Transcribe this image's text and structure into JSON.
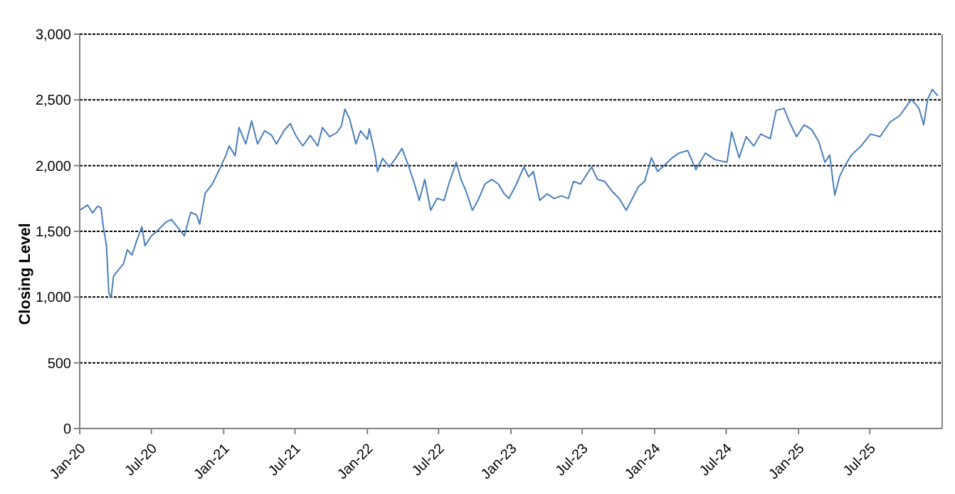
{
  "chart_data": {
    "type": "line",
    "ylabel": "Closing Level",
    "grid": "y",
    "marker": "none",
    "line_style": "solid",
    "xlim": [
      "2020-01-01",
      "2026-01-01"
    ],
    "xticks": [
      {
        "value": "2020-01-01",
        "label": "Jan-20"
      },
      {
        "value": "2020-07-01",
        "label": "Jul-20"
      },
      {
        "value": "2021-01-01",
        "label": "Jan-21"
      },
      {
        "value": "2021-07-01",
        "label": "Jul-21"
      },
      {
        "value": "2022-01-01",
        "label": "Jan-22"
      },
      {
        "value": "2022-07-01",
        "label": "Jul-22"
      },
      {
        "value": "2023-01-01",
        "label": "Jan-23"
      },
      {
        "value": "2023-07-01",
        "label": "Jul-23"
      },
      {
        "value": "2024-01-01",
        "label": "Jan-24"
      },
      {
        "value": "2024-07-01",
        "label": "Jul-24"
      },
      {
        "value": "2025-01-01",
        "label": "Jan-25"
      },
      {
        "value": "2025-07-01",
        "label": "Jul-25"
      }
    ],
    "ylim": [
      0,
      3000
    ],
    "yticks": [
      {
        "value": 0,
        "label": "0"
      },
      {
        "value": 500,
        "label": "500"
      },
      {
        "value": 1000,
        "label": "1,000"
      },
      {
        "value": 1500,
        "label": "1,500"
      },
      {
        "value": 2000,
        "label": "2,000"
      },
      {
        "value": 2500,
        "label": "2,500"
      },
      {
        "value": 3000,
        "label": "3,000"
      }
    ],
    "x": [
      "2020-01-01",
      "2020-01-21",
      "2020-02-03",
      "2020-02-15",
      "2020-02-24",
      "2020-03-01",
      "2020-03-09",
      "2020-03-15",
      "2020-03-21",
      "2020-03-27",
      "2020-04-09",
      "2020-04-21",
      "2020-05-01",
      "2020-05-13",
      "2020-05-25",
      "2020-06-07",
      "2020-06-15",
      "2020-07-01",
      "2020-07-15",
      "2020-08-07",
      "2020-08-21",
      "2020-09-09",
      "2020-09-23",
      "2020-10-09",
      "2020-10-24",
      "2020-11-01",
      "2020-11-15",
      "2020-12-03",
      "2020-12-21",
      "2021-01-06",
      "2021-01-15",
      "2021-01-30",
      "2021-02-09",
      "2021-02-26",
      "2021-03-13",
      "2021-03-28",
      "2021-04-15",
      "2021-05-03",
      "2021-05-15",
      "2021-06-03",
      "2021-06-19",
      "2021-07-03",
      "2021-07-21",
      "2021-08-09",
      "2021-08-28",
      "2021-09-09",
      "2021-09-27",
      "2021-10-15",
      "2021-10-27",
      "2021-11-05",
      "2021-11-17",
      "2021-12-03",
      "2021-12-15",
      "2022-01-01",
      "2022-01-06",
      "2022-01-21",
      "2022-01-27",
      "2022-02-09",
      "2022-02-26",
      "2022-03-15",
      "2022-03-30",
      "2022-04-15",
      "2022-05-01",
      "2022-05-13",
      "2022-05-27",
      "2022-06-11",
      "2022-06-27",
      "2022-07-15",
      "2022-07-27",
      "2022-08-15",
      "2022-08-27",
      "2022-09-09",
      "2022-09-25",
      "2022-10-09",
      "2022-10-27",
      "2022-11-13",
      "2022-11-30",
      "2022-12-15",
      "2022-12-27",
      "2023-01-15",
      "2023-02-03",
      "2023-02-15",
      "2023-02-27",
      "2023-03-15",
      "2023-04-03",
      "2023-04-21",
      "2023-05-09",
      "2023-05-27",
      "2023-06-09",
      "2023-06-27",
      "2023-07-25",
      "2023-08-09",
      "2023-08-27",
      "2023-09-15",
      "2023-10-03",
      "2023-10-21",
      "2023-11-03",
      "2023-11-21",
      "2023-12-07",
      "2023-12-24",
      "2024-01-09",
      "2024-01-27",
      "2024-02-15",
      "2024-03-03",
      "2024-03-25",
      "2024-04-15",
      "2024-05-09",
      "2024-06-03",
      "2024-07-03",
      "2024-07-15",
      "2024-08-03",
      "2024-08-21",
      "2024-09-09",
      "2024-09-27",
      "2024-10-21",
      "2024-11-05",
      "2024-11-25",
      "2024-12-09",
      "2024-12-27",
      "2025-01-15",
      "2025-02-03",
      "2025-02-21",
      "2025-03-09",
      "2025-03-21",
      "2025-04-03",
      "2025-04-15",
      "2025-04-27",
      "2025-05-15",
      "2025-06-09",
      "2025-07-03",
      "2025-07-27",
      "2025-08-21",
      "2025-09-15",
      "2025-10-15",
      "2025-11-03",
      "2025-11-15",
      "2025-11-25",
      "2025-12-07",
      "2025-12-21"
    ],
    "series": [
      {
        "color": "#4a7ebb",
        "values": [
          1660,
          1700,
          1640,
          1690,
          1680,
          1535,
          1390,
          1030,
          1000,
          1160,
          1210,
          1250,
          1360,
          1320,
          1430,
          1535,
          1390,
          1465,
          1500,
          1570,
          1590,
          1520,
          1465,
          1645,
          1625,
          1555,
          1790,
          1860,
          1970,
          2075,
          2150,
          2075,
          2290,
          2165,
          2340,
          2165,
          2265,
          2230,
          2165,
          2265,
          2320,
          2230,
          2150,
          2230,
          2150,
          2290,
          2220,
          2250,
          2300,
          2430,
          2355,
          2165,
          2265,
          2200,
          2280,
          2080,
          1955,
          2055,
          1990,
          2060,
          2130,
          2005,
          1860,
          1735,
          1895,
          1660,
          1750,
          1735,
          1860,
          2025,
          1895,
          1805,
          1660,
          1735,
          1860,
          1895,
          1860,
          1785,
          1750,
          1860,
          1990,
          1915,
          1955,
          1735,
          1785,
          1750,
          1770,
          1750,
          1880,
          1860,
          1990,
          1895,
          1880,
          1805,
          1750,
          1660,
          1735,
          1840,
          1880,
          2060,
          1955,
          2005,
          2060,
          2095,
          2115,
          1970,
          2095,
          2045,
          2025,
          2255,
          2060,
          2220,
          2150,
          2240,
          2205,
          2420,
          2435,
          2330,
          2220,
          2310,
          2275,
          2185,
          2025,
          2080,
          1775,
          1915,
          1990,
          2080,
          2150,
          2240,
          2220,
          2330,
          2380,
          2505,
          2435,
          2310,
          2505,
          2580,
          2530
        ]
      }
    ]
  }
}
